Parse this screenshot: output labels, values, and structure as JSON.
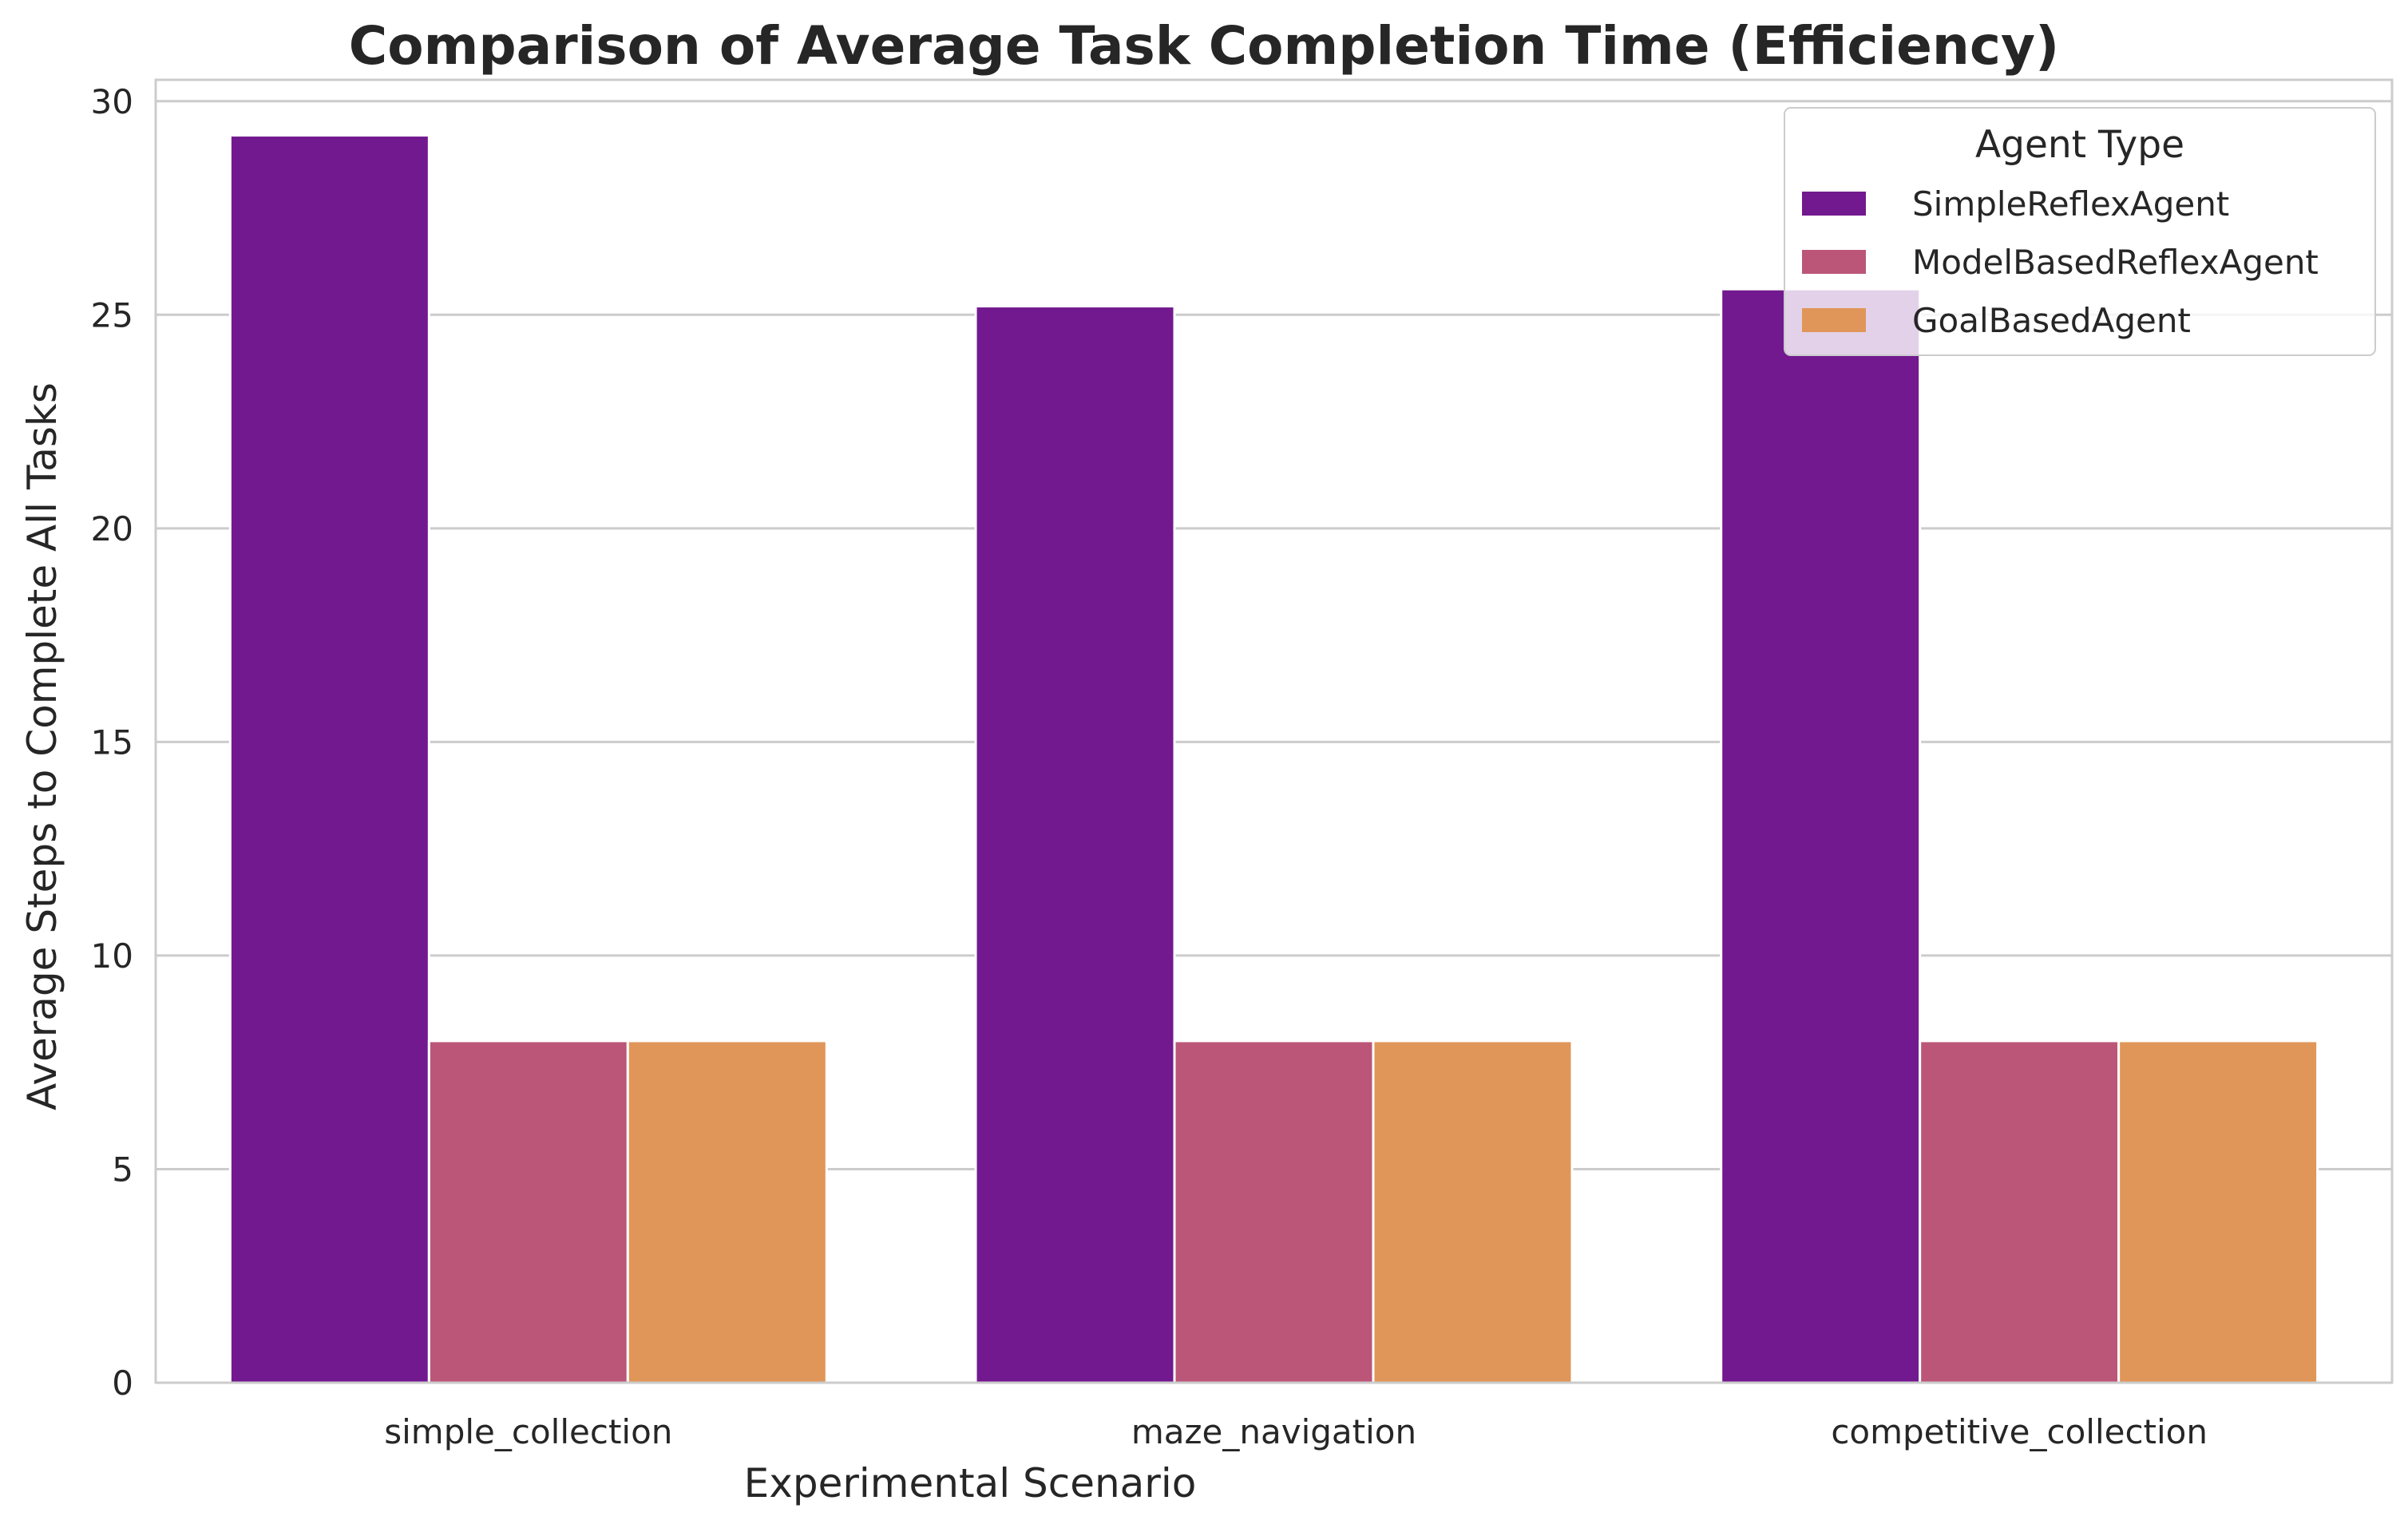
{
  "chart_data": {
    "type": "bar",
    "title": "Comparison of Average Task Completion Time (Efficiency)",
    "xlabel": "Experimental Scenario",
    "ylabel": "Average Steps to Complete All Tasks",
    "categories": [
      "simple_collection",
      "maze_navigation",
      "competitive_collection"
    ],
    "series": [
      {
        "name": "SimpleReflexAgent",
        "color": "#72198f",
        "values": [
          29.2,
          25.2,
          25.6
        ]
      },
      {
        "name": "ModelBasedReflexAgent",
        "color": "#bb5679",
        "values": [
          8.0,
          8.0,
          8.0
        ]
      },
      {
        "name": "GoalBasedAgent",
        "color": "#e09658",
        "values": [
          8.0,
          8.0,
          8.0
        ]
      }
    ],
    "ylim": [
      0,
      30.5
    ],
    "yticks": [
      0,
      5,
      10,
      15,
      20,
      25,
      30
    ],
    "grid": true,
    "legend": {
      "title": "Agent Type",
      "placement": "top-right"
    }
  }
}
